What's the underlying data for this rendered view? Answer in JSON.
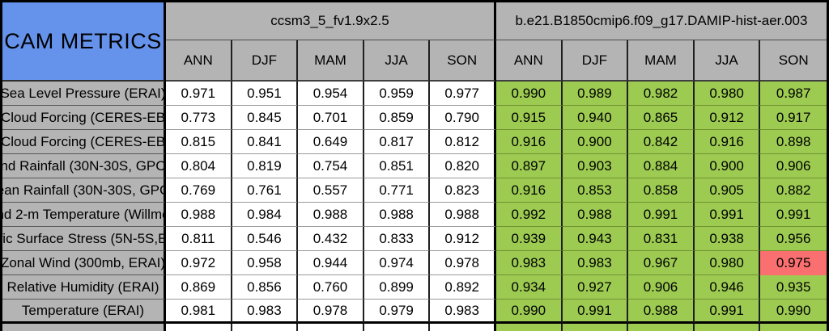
{
  "chart_data": {
    "type": "table",
    "title": "CAM METRICS",
    "column_groups": [
      "ccsm3_5_fv1.9x2.5",
      "b.e21.B1850cmip6.f09_g17.DAMIP-hist-aer.003"
    ],
    "seasons": [
      "ANN",
      "DJF",
      "MAM",
      "JJA",
      "SON"
    ],
    "rows": [
      {
        "label": "Sea Level Pressure (ERAI)",
        "m1": [
          "0.971",
          "0.951",
          "0.954",
          "0.959",
          "0.977"
        ],
        "m2": [
          "0.990",
          "0.989",
          "0.982",
          "0.980",
          "0.987"
        ]
      },
      {
        "label": "Cloud Forcing (CERES-EB",
        "m1": [
          "0.773",
          "0.845",
          "0.701",
          "0.859",
          "0.790"
        ],
        "m2": [
          "0.915",
          "0.940",
          "0.865",
          "0.912",
          "0.917"
        ]
      },
      {
        "label": "Cloud Forcing (CERES-EB",
        "m1": [
          "0.815",
          "0.841",
          "0.649",
          "0.817",
          "0.812"
        ],
        "m2": [
          "0.916",
          "0.900",
          "0.842",
          "0.916",
          "0.898"
        ]
      },
      {
        "label": "nd Rainfall (30N-30S, GPC",
        "m1": [
          "0.804",
          "0.819",
          "0.754",
          "0.851",
          "0.820"
        ],
        "m2": [
          "0.897",
          "0.903",
          "0.884",
          "0.900",
          "0.906"
        ]
      },
      {
        "label": "ean Rainfall (30N-30S, GPC",
        "m1": [
          "0.769",
          "0.761",
          "0.557",
          "0.771",
          "0.823"
        ],
        "m2": [
          "0.916",
          "0.853",
          "0.858",
          "0.905",
          "0.882"
        ]
      },
      {
        "label": "nd 2-m Temperature (Willmo",
        "m1": [
          "0.988",
          "0.984",
          "0.988",
          "0.988",
          "0.988"
        ],
        "m2": [
          "0.992",
          "0.988",
          "0.991",
          "0.991",
          "0.991"
        ]
      },
      {
        "label": "fic Surface Stress (5N-5S,E",
        "m1": [
          "0.811",
          "0.546",
          "0.432",
          "0.833",
          "0.912"
        ],
        "m2": [
          "0.939",
          "0.943",
          "0.831",
          "0.938",
          "0.956"
        ]
      },
      {
        "label": "Zonal Wind (300mb, ERAI)",
        "m1": [
          "0.972",
          "0.958",
          "0.944",
          "0.974",
          "0.978"
        ],
        "m2": [
          "0.983",
          "0.983",
          "0.967",
          "0.980",
          "0.975"
        ]
      },
      {
        "label": "Relative Humidity (ERAI)",
        "m1": [
          "0.869",
          "0.856",
          "0.760",
          "0.899",
          "0.892"
        ],
        "m2": [
          "0.934",
          "0.927",
          "0.906",
          "0.946",
          "0.935"
        ]
      },
      {
        "label": "Temperature (ERAI)",
        "m1": [
          "0.981",
          "0.983",
          "0.978",
          "0.979",
          "0.983"
        ],
        "m2": [
          "0.990",
          "0.991",
          "0.988",
          "0.991",
          "0.990"
        ]
      }
    ],
    "highlighted_cell": {
      "row_label": "Zonal Wind (300mb, ERAI)",
      "group": "b.e21.B1850cmip6.f09_g17.DAMIP-hist-aer.003",
      "season": "SON",
      "value": "0.975",
      "highlight_color": "#fa6f6f"
    },
    "layout_hints": {
      "grid": "on",
      "group1_cell_bg": "#ffffff",
      "group2_cell_bg": "#9dcb52",
      "header_bg": "#b4b4b4",
      "title_bg": "#6592ea",
      "note": "labels clipped at left viewport edge; 11th row partially cut at bottom"
    }
  }
}
